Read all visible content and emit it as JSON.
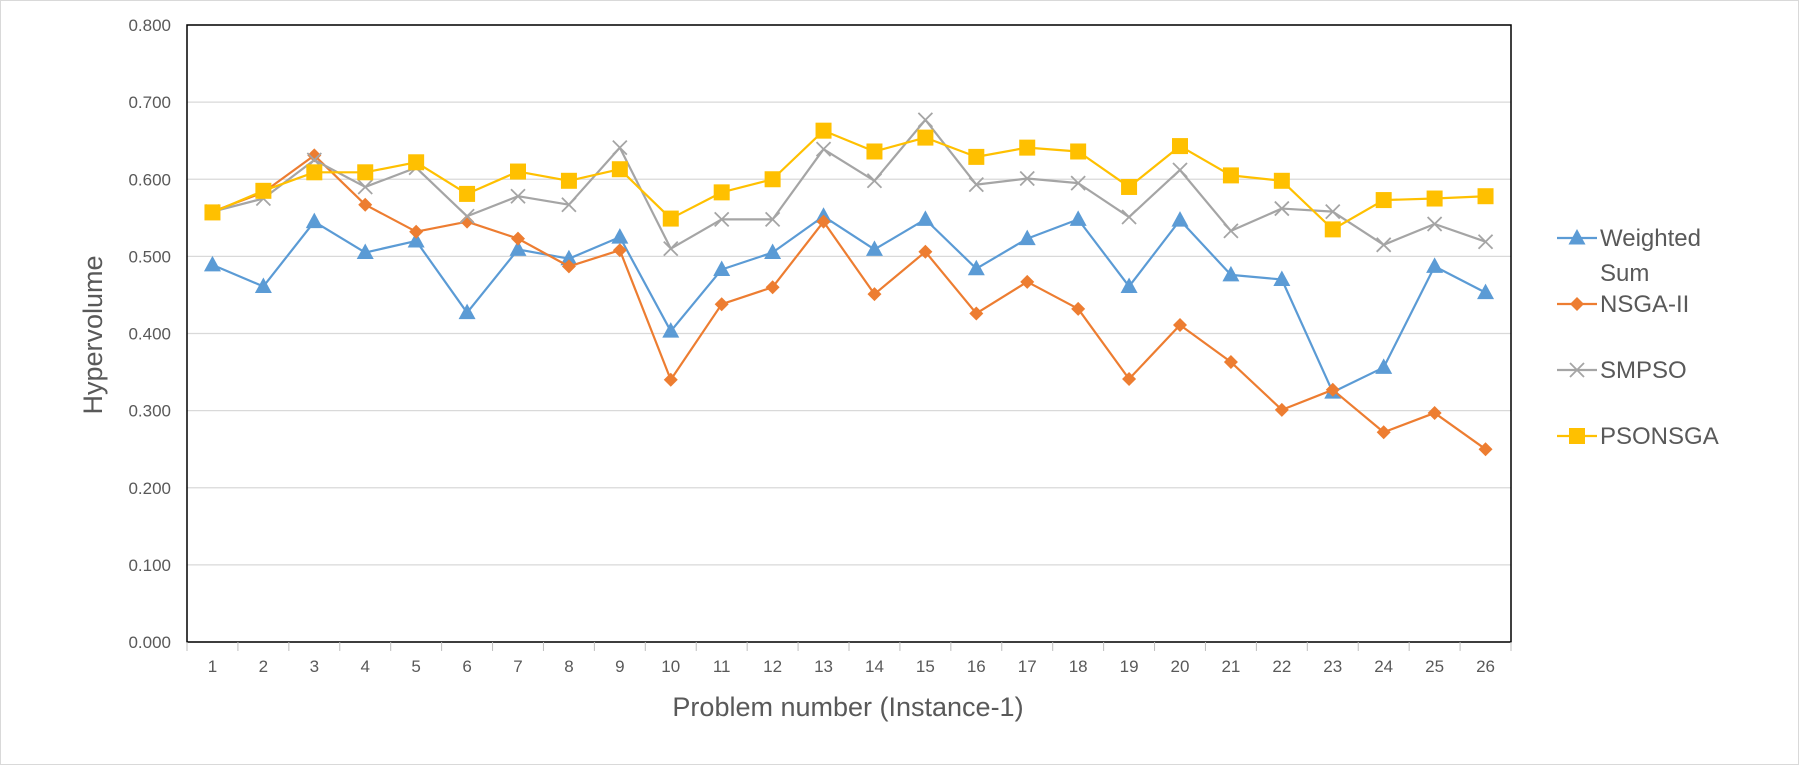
{
  "chart_data": {
    "type": "line",
    "title": "",
    "xlabel": "Problem number (Instance-1)",
    "ylabel": "Hypervolume",
    "ylim": [
      0,
      0.8
    ],
    "yticks": [
      "0.000",
      "0.100",
      "0.200",
      "0.300",
      "0.400",
      "0.500",
      "0.600",
      "0.700",
      "0.800"
    ],
    "grid": "horizontal",
    "legend_position": "right",
    "categories": [
      "1",
      "2",
      "3",
      "4",
      "5",
      "6",
      "7",
      "8",
      "9",
      "10",
      "11",
      "12",
      "13",
      "14",
      "15",
      "16",
      "17",
      "18",
      "19",
      "20",
      "21",
      "22",
      "23",
      "24",
      "25",
      "26"
    ],
    "series": [
      {
        "name": "Weighted Sum",
        "name_lines": [
          "Weighted",
          "Sum"
        ],
        "color": "#5b9bd5",
        "marker": "triangle",
        "values": [
          0.489,
          0.461,
          0.545,
          0.505,
          0.52,
          0.427,
          0.509,
          0.497,
          0.525,
          0.403,
          0.483,
          0.505,
          0.552,
          0.509,
          0.548,
          0.484,
          0.523,
          0.548,
          0.461,
          0.547,
          0.476,
          0.47,
          0.324,
          0.356,
          0.487,
          0.453
        ]
      },
      {
        "name": "NSGA-II",
        "name_lines": [
          "NSGA-II"
        ],
        "color": "#ed7d31",
        "marker": "diamond",
        "values": [
          0.558,
          0.583,
          0.631,
          0.567,
          0.532,
          0.545,
          0.523,
          0.487,
          0.508,
          0.34,
          0.438,
          0.46,
          0.545,
          0.451,
          0.506,
          0.426,
          0.467,
          0.432,
          0.341,
          0.411,
          0.363,
          0.301,
          0.327,
          0.272,
          0.297,
          0.25
        ]
      },
      {
        "name": "SMPSO",
        "name_lines": [
          "SMPSO"
        ],
        "color": "#a5a5a5",
        "marker": "x",
        "values": [
          0.558,
          0.575,
          0.625,
          0.59,
          0.615,
          0.552,
          0.578,
          0.567,
          0.641,
          0.51,
          0.548,
          0.548,
          0.639,
          0.598,
          0.677,
          0.593,
          0.601,
          0.595,
          0.551,
          0.612,
          0.533,
          0.562,
          0.558,
          0.515,
          0.542,
          0.519
        ]
      },
      {
        "name": "PSONSGA",
        "name_lines": [
          "PSONSGA"
        ],
        "color": "#ffc000",
        "marker": "square",
        "values": [
          0.557,
          0.585,
          0.609,
          0.609,
          0.622,
          0.581,
          0.61,
          0.598,
          0.613,
          0.549,
          0.583,
          0.6,
          0.663,
          0.636,
          0.654,
          0.629,
          0.641,
          0.636,
          0.59,
          0.643,
          0.605,
          0.598,
          0.535,
          0.573,
          0.575,
          0.578
        ]
      }
    ]
  }
}
